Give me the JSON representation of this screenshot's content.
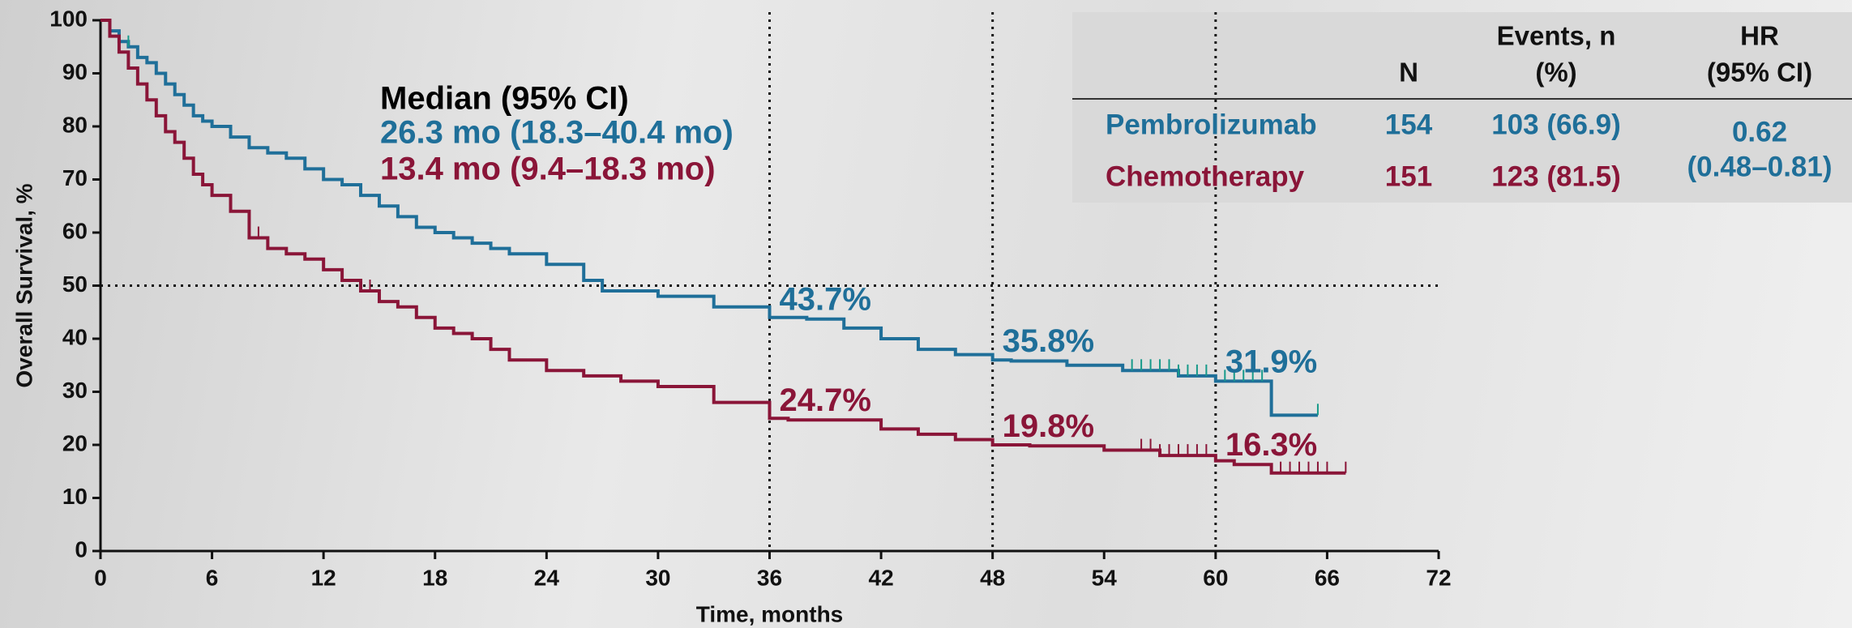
{
  "chart_data": {
    "type": "step",
    "x_label": "Time, months",
    "y_label": "Overall Survival, %",
    "xlim": [
      0,
      72
    ],
    "xticks": [
      0,
      6,
      12,
      18,
      24,
      30,
      36,
      42,
      48,
      54,
      60,
      66,
      72
    ],
    "ylim": [
      0,
      100
    ],
    "yticks": [
      0,
      10,
      20,
      30,
      40,
      50,
      60,
      70,
      80,
      90,
      100
    ],
    "ref_y": [
      50
    ],
    "ref_x": [
      36,
      48,
      60
    ],
    "median_title": "Median (95% CI)",
    "series": [
      {
        "name": "Pembrolizumab",
        "color": "#1f6f99",
        "censor_color": "#179a8a",
        "median_label": "26.3 mo (18.3–40.4 mo)",
        "x": [
          0,
          0.5,
          1,
          1.5,
          2,
          2.5,
          3,
          3.5,
          4,
          4.5,
          5,
          5.5,
          6,
          7,
          8,
          9,
          10,
          11,
          12,
          13,
          14,
          15,
          16,
          17,
          18,
          19,
          20,
          21,
          22,
          24,
          26,
          27,
          30,
          33,
          36,
          38,
          40,
          42,
          44,
          46,
          48,
          49,
          52,
          55,
          58,
          60,
          62,
          63,
          65.5
        ],
        "values": [
          100,
          98,
          96,
          95,
          93,
          92,
          90,
          88,
          86,
          84,
          82,
          81,
          80,
          78,
          76,
          75,
          74,
          72,
          70,
          69,
          67,
          65,
          63,
          61,
          60,
          59,
          58,
          57,
          56,
          54,
          51,
          49,
          48,
          46,
          44,
          43.7,
          42,
          40,
          38,
          37,
          36,
          35.8,
          35,
          34,
          33,
          32,
          32,
          25.6,
          25.6
        ],
        "censor_x": [
          1.5,
          55.5,
          56,
          56.5,
          57,
          57.5,
          58,
          58.5,
          59,
          59.5,
          60.5,
          61,
          61.5,
          62,
          62.5,
          65.5
        ],
        "landmarks": [
          {
            "x": 36,
            "value": 43.7,
            "label": "43.7%"
          },
          {
            "x": 48,
            "value": 35.8,
            "label": "35.8%"
          },
          {
            "x": 60,
            "value": 31.9,
            "label": "31.9%"
          }
        ]
      },
      {
        "name": "Chemotherapy",
        "color": "#8a1538",
        "censor_color": "#8a1538",
        "median_label": "13.4 mo (9.4–18.3 mo)",
        "x": [
          0,
          0.5,
          1,
          1.5,
          2,
          2.5,
          3,
          3.5,
          4,
          4.5,
          5,
          5.5,
          6,
          7,
          8,
          9,
          10,
          11,
          12,
          13,
          14,
          15,
          16,
          17,
          18,
          19,
          20,
          21,
          22,
          24,
          26,
          28,
          30,
          33,
          36,
          37,
          42,
          44,
          46,
          48,
          50,
          54,
          57,
          60,
          61,
          63,
          67
        ],
        "values": [
          100,
          97,
          94,
          91,
          88,
          85,
          82,
          79,
          77,
          74,
          71,
          69,
          67,
          64,
          59,
          57,
          56,
          55,
          53,
          51,
          49,
          47,
          46,
          44,
          42,
          41,
          40,
          38,
          36,
          34,
          33,
          32,
          31,
          28,
          25,
          24.7,
          23,
          22,
          21,
          20,
          19.8,
          19,
          18,
          17,
          16.3,
          14.7,
          14.7
        ],
        "censor_x": [
          8.5,
          14.5,
          56,
          56.5,
          57,
          57.5,
          58,
          58.5,
          59,
          59.5,
          63.5,
          64,
          64.5,
          65,
          65.5,
          66,
          67
        ],
        "landmarks": [
          {
            "x": 36,
            "value": 24.7,
            "label": "24.7%"
          },
          {
            "x": 48,
            "value": 19.8,
            "label": "19.8%"
          },
          {
            "x": 60,
            "value": 16.3,
            "label": "16.3%"
          }
        ]
      }
    ]
  },
  "table": {
    "header": [
      [
        "N"
      ],
      [
        "Events, n",
        "(%)"
      ],
      [
        "HR",
        "(95% CI)"
      ]
    ],
    "rows": [
      [
        "Pembrolizumab",
        "154",
        "103 (66.9)"
      ],
      [
        "Chemotherapy",
        "151",
        "123 (81.5)"
      ]
    ],
    "hr": [
      "0.62",
      "(0.48–0.81)"
    ]
  }
}
